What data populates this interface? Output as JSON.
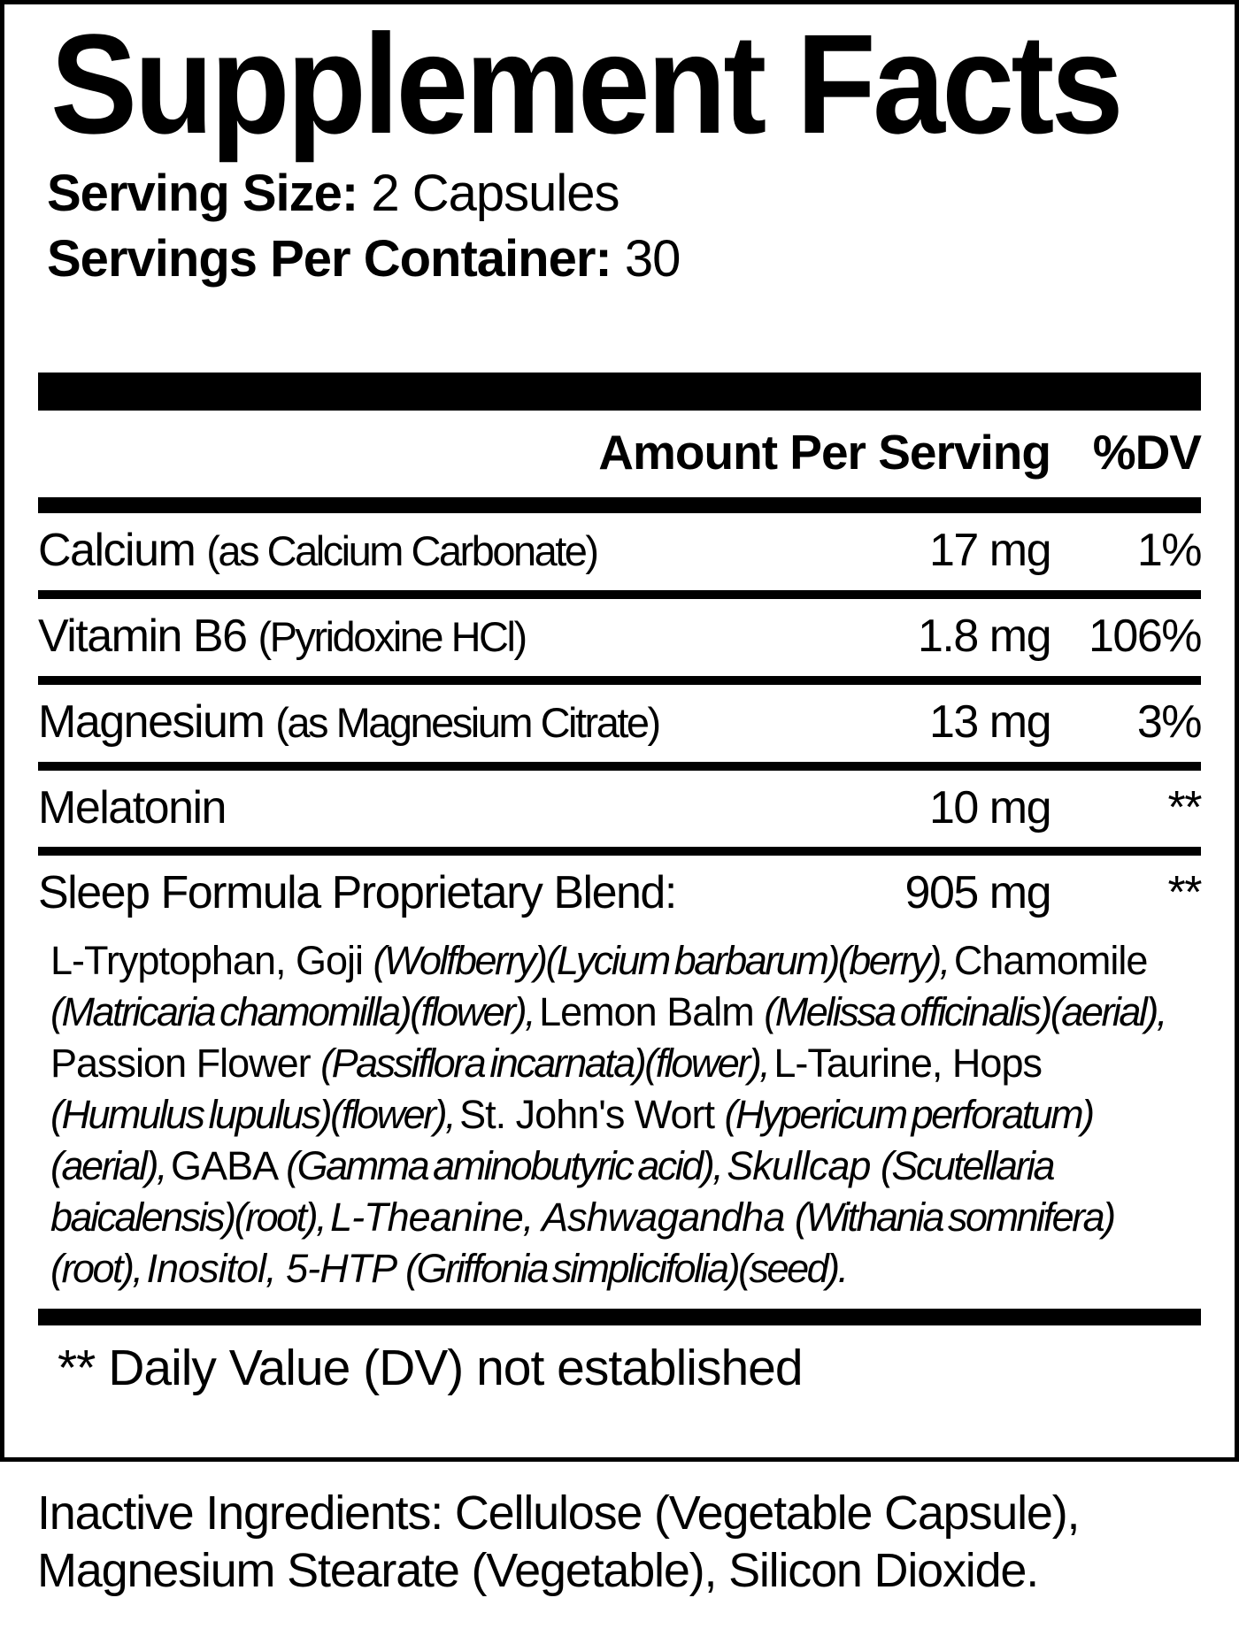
{
  "title": "Supplement Facts",
  "serving": {
    "size_label": "Serving Size:",
    "size_value": "2 Capsules",
    "container_label": "Servings Per Container:",
    "container_value": "30"
  },
  "table": {
    "amount_header": "Amount Per Serving",
    "dv_header": "%DV",
    "rows": [
      {
        "name": "Calcium",
        "detail": "(as Calcium Carbonate)",
        "amount": "17 mg",
        "dv": "1%"
      },
      {
        "name": "Vitamin B6",
        "detail": "(Pyridoxine HCl)",
        "amount": "1.8 mg",
        "dv": "106%"
      },
      {
        "name": "Magnesium",
        "detail": "(as Magnesium Citrate)",
        "amount": "13 mg",
        "dv": "3%"
      },
      {
        "name": "Melatonin",
        "detail": "",
        "amount": "10 mg",
        "dv": "**"
      },
      {
        "name": "Sleep Formula Proprietary Blend:",
        "detail": "",
        "amount": "905 mg",
        "dv": "**"
      }
    ]
  },
  "blend": {
    "segments": [
      "L-Tryptophan,  Goji ",
      "(Wolfberry)(Lycium barbarum)(berry), ",
      "Chamomile ",
      "(Matricaria chamomilla)(flower), ",
      "Lemon Balm ",
      "(Melissa officinalis)(aerial), ",
      "Passion Flower ",
      "(Passiflora incarnata)(flower), ",
      "L-Taurine, Hops ",
      "(Humulus lupulus)(flower), ",
      "St. John's Wort ",
      "(Hypericum perforatum)(aerial), ",
      "GABA ",
      "(Gamma aminobutyric acid), ",
      "Skullcap ",
      "(Scutellaria baicalensis)(root), ",
      "L-Theanine, Ashwagandha ",
      "(Withania somnifera)(root), ",
      "Inositol, 5-HTP ",
      "(Griffonia simplicifolia)(seed)."
    ]
  },
  "footnote": "** Daily Value (DV) not established",
  "inactive_ingredients": "Inactive Ingredients: Cellulose (Vegetable Capsule), Magnesium Stearate (Vegetable), Silicon Dioxide.",
  "colors": {
    "ink": "#000000",
    "paper": "#ffffff"
  }
}
